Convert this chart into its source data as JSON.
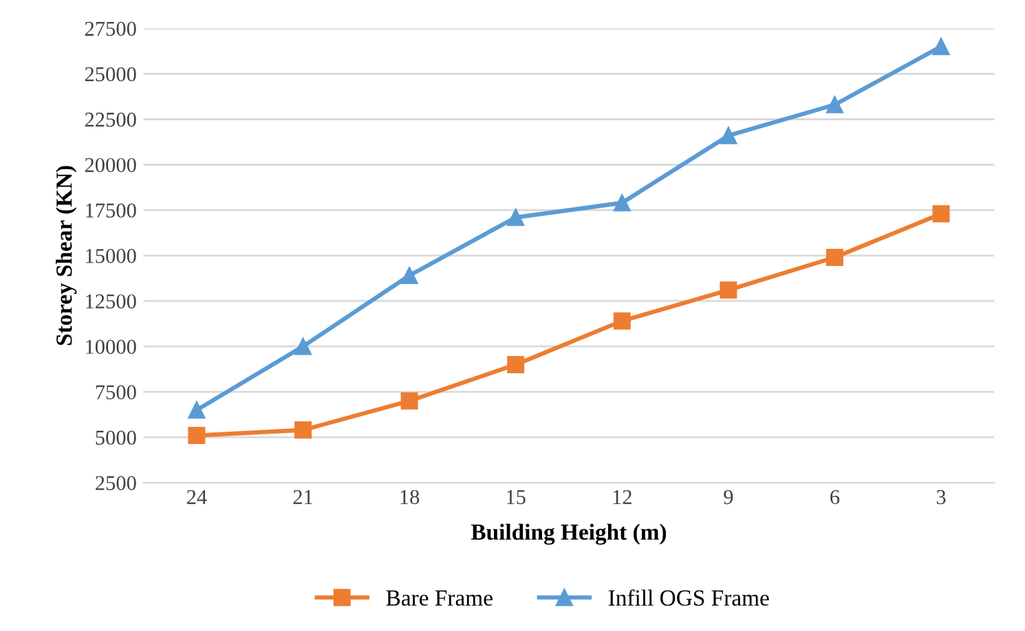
{
  "chart_data": {
    "type": "line",
    "xlabel": "Building Height (m)",
    "ylabel": "Storey Shear (KN)",
    "categories": [
      "24",
      "21",
      "18",
      "15",
      "12",
      "9",
      "6",
      "3"
    ],
    "series": [
      {
        "name": "Bare Frame",
        "color": "#ed7d31",
        "marker": "square",
        "values": [
          5100,
          5400,
          7000,
          9000,
          11400,
          13100,
          14900,
          17300
        ]
      },
      {
        "name": "Infill OGS Frame",
        "color": "#5b9bd5",
        "marker": "triangle",
        "values": [
          6500,
          10000,
          13900,
          17100,
          17900,
          21600,
          23300,
          26500
        ]
      }
    ],
    "ylim": [
      2500,
      27500
    ],
    "yticks": [
      2500,
      5000,
      7500,
      10000,
      12500,
      15000,
      17500,
      20000,
      22500,
      25000,
      27500
    ],
    "grid": "y",
    "legend": "bottom",
    "line_style": "solid"
  }
}
